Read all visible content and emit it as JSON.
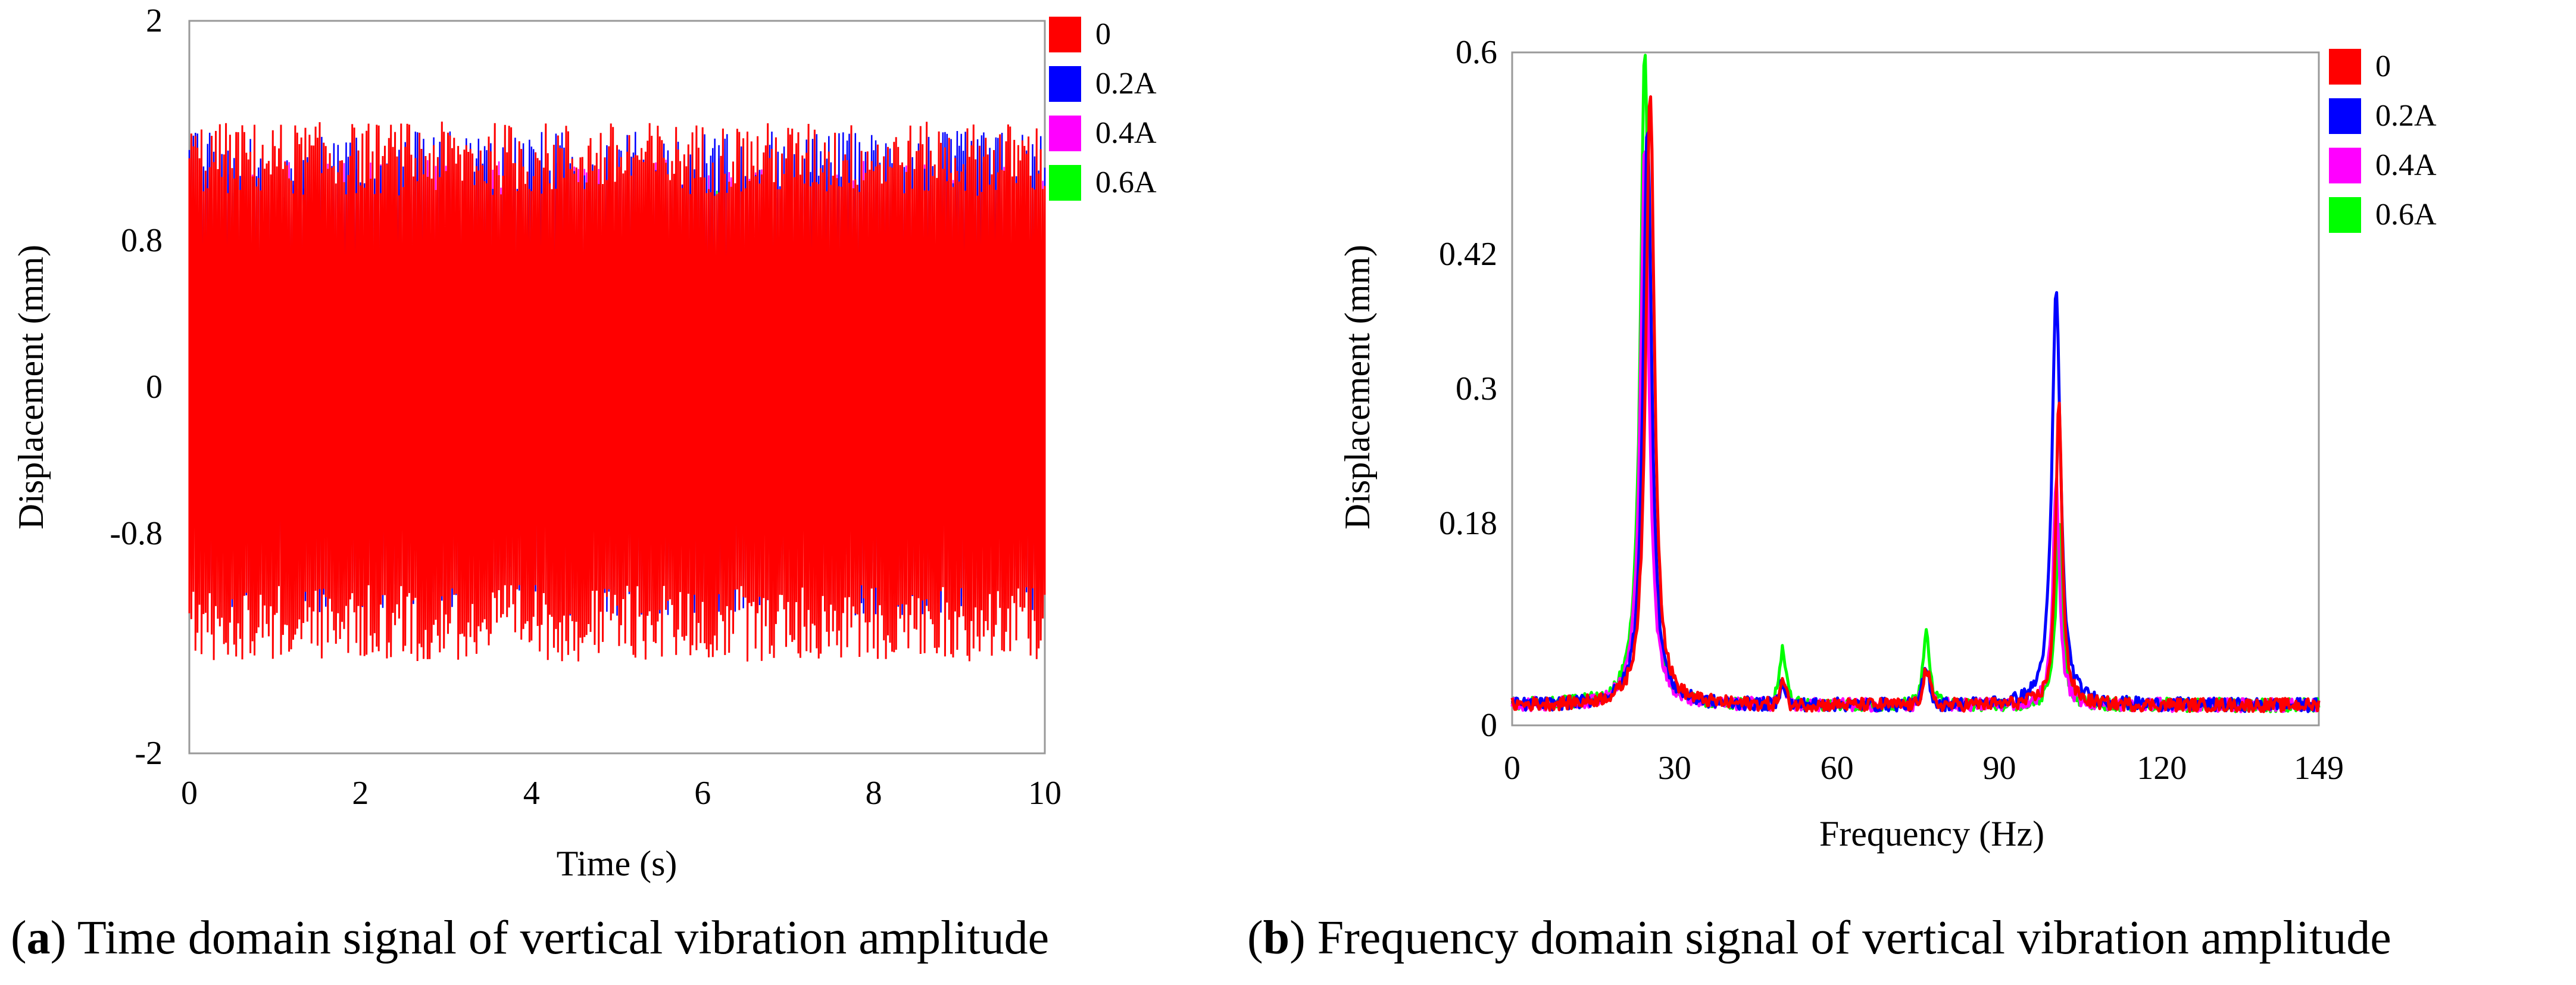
{
  "chart_data": [
    {
      "type": "line",
      "panel": "a",
      "xlabel": "Time (s)",
      "ylabel": "Displacement (mm)",
      "xlim": [
        0,
        10
      ],
      "ylim": [
        -2,
        2
      ],
      "xticks": [
        "0",
        "2",
        "4",
        "6",
        "8",
        "10"
      ],
      "yticks": [
        "2",
        "0.8",
        "0",
        "-0.8",
        "-2"
      ],
      "ytick_values": [
        2,
        0.8,
        0,
        -0.8,
        -2
      ],
      "series": [
        {
          "name": "0",
          "color": "#ff0000",
          "amplitude_max": 1.45,
          "amplitude_min": -1.5
        },
        {
          "name": "0.2A",
          "color": "#0000ff",
          "amplitude_max": 1.4,
          "amplitude_min": -1.25
        },
        {
          "name": "0.4A",
          "color": "#ff00ff",
          "amplitude_max": 1.25,
          "amplitude_min": -1.1
        },
        {
          "name": "0.6A",
          "color": "#00ff00",
          "amplitude_max": 1.1,
          "amplitude_min": -1.0
        }
      ],
      "legend_position": "right",
      "caption_label": "a",
      "caption_text": "Time domain signal of vertical vibration amplitude"
    },
    {
      "type": "line",
      "panel": "b",
      "xlabel": "Frequency (Hz)",
      "ylabel": "Displacement (mm)",
      "xlim": [
        0,
        149
      ],
      "ylim": [
        0,
        0.6
      ],
      "xticks": [
        "0",
        "30",
        "60",
        "90",
        "120",
        "149"
      ],
      "xtick_values": [
        0,
        30,
        60,
        90,
        120,
        149
      ],
      "yticks": [
        "0.6",
        "0.42",
        "0.3",
        "0.18",
        "0"
      ],
      "ytick_values": [
        0.6,
        0.42,
        0.3,
        0.18,
        0
      ],
      "series": [
        {
          "name": "0",
          "color": "#ff0000",
          "peaks": [
            {
              "f": 25.5,
              "a": 0.55
            },
            {
              "f": 101,
              "a": 0.27
            }
          ]
        },
        {
          "name": "0.2A",
          "color": "#0000ff",
          "peaks": [
            {
              "f": 25,
              "a": 0.52
            },
            {
              "f": 100.5,
              "a": 0.37
            }
          ]
        },
        {
          "name": "0.4A",
          "color": "#ff00ff",
          "peaks": [
            {
              "f": 24.5,
              "a": 0.5
            },
            {
              "f": 100.5,
              "a": 0.2
            }
          ]
        },
        {
          "name": "0.6A",
          "color": "#00ff00",
          "peaks": [
            {
              "f": 24.5,
              "a": 0.59
            },
            {
              "f": 101,
              "a": 0.16
            },
            {
              "f": 50,
              "a": 0.05
            },
            {
              "f": 76.5,
              "a": 0.07
            }
          ]
        }
      ],
      "legend_position": "right",
      "caption_label": "b",
      "caption_text": "Frequency domain signal of vertical vibration amplitude"
    }
  ]
}
